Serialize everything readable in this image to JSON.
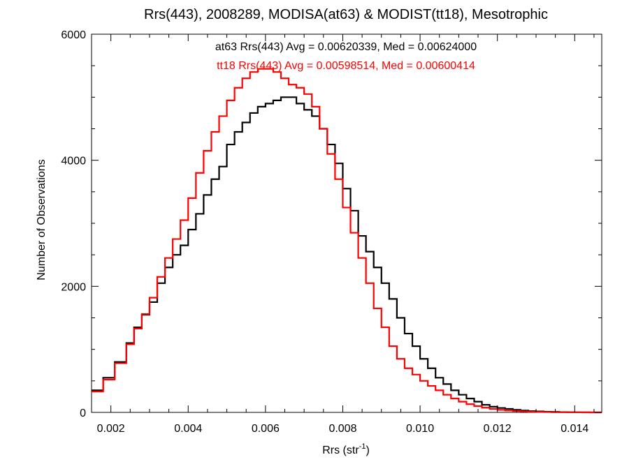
{
  "chart_data": {
    "type": "line",
    "style": "step",
    "title": "Rrs(443), 2008289, MODISA(at63) & MODIST(tt18), Mesotrophic",
    "xlabel": "Rrs (str",
    "xlabel_sup": "-1",
    "xlabel_suffix": ")",
    "ylabel": "Number of Observations",
    "xlim": [
      0.0015,
      0.0147
    ],
    "ylim": [
      0,
      6000
    ],
    "grid": false,
    "x_ticks": [
      {
        "value": 0.002,
        "label": "0.002"
      },
      {
        "value": 0.004,
        "label": "0.004"
      },
      {
        "value": 0.006,
        "label": "0.006"
      },
      {
        "value": 0.008,
        "label": "0.008"
      },
      {
        "value": 0.01,
        "label": "0.010"
      },
      {
        "value": 0.012,
        "label": "0.012"
      },
      {
        "value": 0.014,
        "label": "0.014"
      }
    ],
    "y_ticks": [
      {
        "value": 0,
        "label": "0"
      },
      {
        "value": 2000,
        "label": "2000"
      },
      {
        "value": 4000,
        "label": "4000"
      },
      {
        "value": 6000,
        "label": "6000"
      }
    ],
    "annotations": [
      {
        "text": "at63 Rrs(443) Avg = 0.00620339, Med = 0.00624000",
        "color": "#000000"
      },
      {
        "text": "tt18 Rrs(443) Avg = 0.00598514, Med = 0.00600414",
        "color": "#ff0000"
      }
    ],
    "series": [
      {
        "name": "at63",
        "color": "#000000",
        "x": [
          0.0015,
          0.0018,
          0.0021,
          0.0024,
          0.0026,
          0.0028,
          0.003,
          0.0032,
          0.0034,
          0.0036,
          0.0038,
          0.004,
          0.0042,
          0.0044,
          0.0046,
          0.0048,
          0.005,
          0.0052,
          0.0054,
          0.0056,
          0.0058,
          0.006,
          0.0062,
          0.0064,
          0.0066,
          0.0068,
          0.007,
          0.0072,
          0.0074,
          0.0076,
          0.0078,
          0.008,
          0.0082,
          0.0084,
          0.0086,
          0.0088,
          0.009,
          0.0092,
          0.0094,
          0.0096,
          0.0098,
          0.01,
          0.0102,
          0.0104,
          0.0106,
          0.0108,
          0.011,
          0.0112,
          0.0114,
          0.0116,
          0.0118,
          0.012,
          0.0122,
          0.0124,
          0.0126,
          0.0128,
          0.013,
          0.0132,
          0.0134,
          0.0136,
          0.0138,
          0.014,
          0.0142,
          0.0144,
          0.0147
        ],
        "y": [
          350,
          550,
          800,
          1100,
          1350,
          1550,
          1750,
          2050,
          2300,
          2500,
          2650,
          2900,
          3150,
          3450,
          3700,
          3900,
          4250,
          4450,
          4600,
          4750,
          4850,
          4900,
          4950,
          5000,
          5000,
          4900,
          4800,
          4700,
          4500,
          4250,
          3950,
          3550,
          3200,
          2800,
          2550,
          2300,
          2050,
          1800,
          1500,
          1250,
          1050,
          850,
          700,
          550,
          450,
          350,
          280,
          220,
          170,
          120,
          90,
          70,
          55,
          40,
          30,
          20,
          15,
          10,
          8,
          5,
          3,
          2,
          1,
          0,
          0
        ]
      },
      {
        "name": "tt18",
        "color": "#ff0000",
        "x": [
          0.0015,
          0.0018,
          0.0021,
          0.0024,
          0.0026,
          0.0028,
          0.003,
          0.0032,
          0.0034,
          0.0036,
          0.0038,
          0.004,
          0.0042,
          0.0044,
          0.0046,
          0.0048,
          0.005,
          0.0052,
          0.0054,
          0.0056,
          0.0058,
          0.006,
          0.0062,
          0.0064,
          0.0066,
          0.0068,
          0.007,
          0.0072,
          0.0074,
          0.0076,
          0.0078,
          0.008,
          0.0082,
          0.0084,
          0.0086,
          0.0088,
          0.009,
          0.0092,
          0.0094,
          0.0096,
          0.0098,
          0.01,
          0.0102,
          0.0104,
          0.0106,
          0.0108,
          0.011,
          0.0112,
          0.0114,
          0.0116,
          0.0118,
          0.012,
          0.0122,
          0.0124,
          0.0126,
          0.0128,
          0.013,
          0.0132,
          0.0134,
          0.0136,
          0.0138,
          0.014,
          0.0142,
          0.0144,
          0.0147
        ],
        "y": [
          330,
          520,
          780,
          1080,
          1330,
          1560,
          1820,
          2150,
          2450,
          2750,
          3050,
          3400,
          3800,
          4150,
          4450,
          4700,
          4950,
          5150,
          5300,
          5400,
          5450,
          5450,
          5400,
          5300,
          5200,
          5150,
          5050,
          4850,
          4500,
          4100,
          3700,
          3250,
          2850,
          2450,
          2050,
          1650,
          1350,
          1050,
          850,
          700,
          600,
          500,
          420,
          350,
          280,
          220,
          170,
          130,
          100,
          75,
          55,
          40,
          30,
          22,
          15,
          10,
          7,
          5,
          3,
          2,
          1,
          1,
          0,
          0,
          0
        ]
      }
    ]
  }
}
